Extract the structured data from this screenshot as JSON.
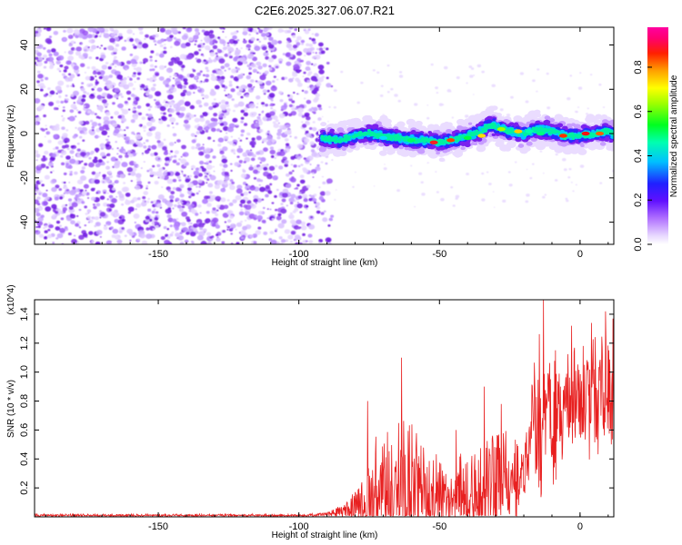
{
  "title": "C2E6.2025.327.06.07.R21",
  "chart_data": [
    {
      "type": "heatmap",
      "xlabel": "Height of straight line (km)",
      "ylabel": "Frequency (Hz)",
      "xlim": [
        -194,
        12
      ],
      "ylim": [
        -50,
        48
      ],
      "xticks": [
        -150,
        -100,
        -50,
        0
      ],
      "yticks": [
        -40,
        -20,
        0,
        20,
        40
      ],
      "noise_region_end_km": -92,
      "signal_trace": {
        "x": [
          -92,
          -85,
          -80,
          -75,
          -70,
          -65,
          -60,
          -55,
          -50,
          -45,
          -40,
          -35,
          -32,
          -30,
          -25,
          -20,
          -15,
          -10,
          -5,
          0,
          5,
          10,
          12
        ],
        "y": [
          -2,
          -3,
          -1,
          0,
          -1,
          -2,
          -3,
          -3,
          -4,
          -3,
          -1,
          1,
          4,
          3,
          1,
          0,
          2,
          1,
          -1,
          -1,
          0,
          1,
          0
        ]
      },
      "colorbar": {
        "label": "Normalized spectral amplitude",
        "range": [
          0,
          1
        ],
        "ticks": [
          "0.0",
          "0.2",
          "0.4",
          "0.6",
          "0.8"
        ],
        "colors": [
          "#ffffff",
          "#e8d8ff",
          "#8020e0",
          "#2020ff",
          "#00e0ff",
          "#00ff60",
          "#e0ff00",
          "#ff8000",
          "#ff0000",
          "#ff0090"
        ]
      }
    },
    {
      "type": "line",
      "xlabel": "Height of straight line (km)",
      "ylabel": "SNR (10 * v/v)",
      "y_multiplier": "(x10^4)",
      "xlim": [
        -194,
        12
      ],
      "ylim": [
        0,
        1.5
      ],
      "xticks": [
        -150,
        -100,
        -50,
        0
      ],
      "yticks": [
        0.2,
        0.4,
        0.6,
        0.8,
        1.0,
        1.2,
        1.4
      ],
      "line_color": "#e82020",
      "envelope": {
        "x": [
          -194,
          -100,
          -95,
          -90,
          -85,
          -80,
          -75,
          -70,
          -65,
          -60,
          -55,
          -50,
          -45,
          -40,
          -35,
          -30,
          -25,
          -20,
          -17,
          -15,
          -10,
          -5,
          0,
          5,
          10,
          12
        ],
        "base": [
          0.01,
          0.01,
          0.012,
          0.02,
          0.04,
          0.08,
          0.12,
          0.2,
          0.22,
          0.2,
          0.15,
          0.12,
          0.14,
          0.18,
          0.2,
          0.22,
          0.25,
          0.3,
          0.6,
          0.7,
          0.7,
          0.72,
          0.78,
          0.85,
          0.9,
          0.88
        ],
        "amp": [
          0.01,
          0.01,
          0.015,
          0.02,
          0.05,
          0.15,
          0.35,
          0.55,
          0.5,
          0.45,
          0.35,
          0.3,
          0.3,
          0.38,
          0.5,
          0.45,
          0.35,
          0.3,
          0.35,
          0.6,
          0.5,
          0.45,
          0.4,
          0.45,
          0.5,
          0.5
        ]
      },
      "peaks": [
        {
          "x": -75.5,
          "y": 0.8
        },
        {
          "x": -63.5,
          "y": 1.1
        },
        {
          "x": -44,
          "y": 0.6
        },
        {
          "x": -34,
          "y": 0.9
        },
        {
          "x": -28,
          "y": 0.78
        },
        {
          "x": -13,
          "y": 1.5
        },
        {
          "x": -3,
          "y": 1.32
        },
        {
          "x": 9,
          "y": 1.42
        },
        {
          "x": 4,
          "y": 1.34
        }
      ]
    }
  ]
}
